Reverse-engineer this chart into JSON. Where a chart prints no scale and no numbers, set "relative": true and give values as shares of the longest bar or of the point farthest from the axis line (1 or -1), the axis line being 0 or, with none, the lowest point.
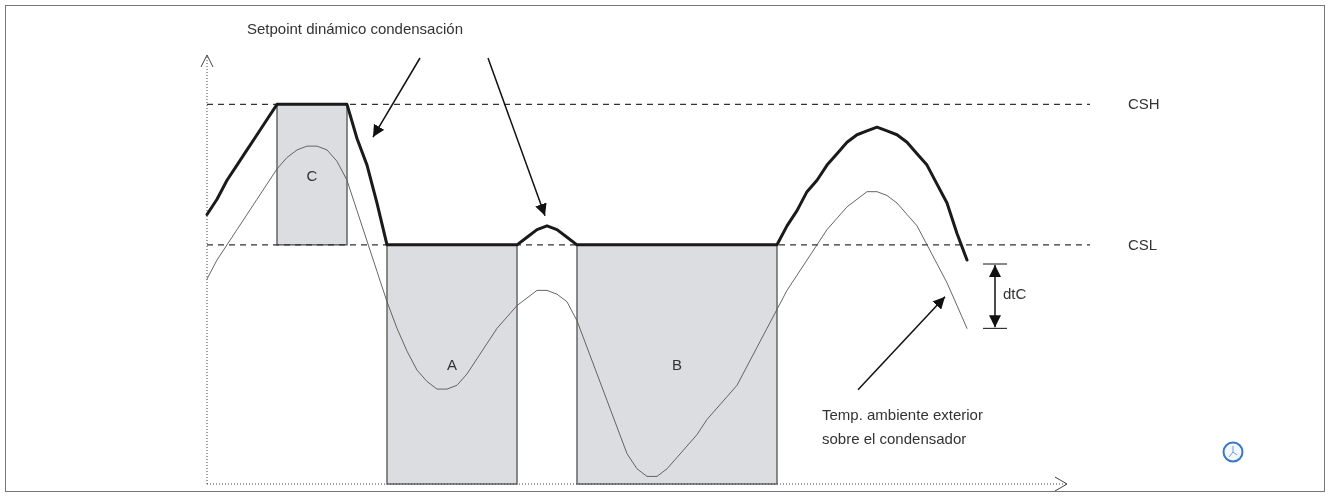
{
  "chart_data": {
    "type": "line",
    "relative": true,
    "categories": [
      null,
      null,
      null,
      null,
      null,
      null,
      null,
      null,
      null,
      null,
      null,
      null,
      null,
      null,
      null,
      null,
      null,
      null,
      null,
      null,
      null,
      null,
      null,
      null,
      null,
      null,
      null,
      null,
      null,
      null,
      null,
      null,
      null,
      null,
      null,
      null,
      null,
      null,
      null,
      null,
      null,
      null,
      null,
      null,
      null,
      null,
      null,
      null,
      null,
      null,
      null,
      null,
      null,
      null,
      null,
      null,
      null,
      null,
      null,
      null,
      null,
      null,
      null,
      null,
      null,
      null,
      null,
      null,
      null,
      null,
      null,
      null,
      null,
      null,
      null,
      null,
      null
    ],
    "series": [
      {
        "color": "#1a1a1a",
        "values": [
          0.71,
          0.75,
          0.8,
          0.84,
          0.88,
          0.92,
          0.96,
          1,
          1,
          1,
          1,
          1,
          1,
          1,
          1,
          0.91,
          0.84,
          0.74,
          0.63,
          0.63,
          0.63,
          0.63,
          0.63,
          0.63,
          0.63,
          0.63,
          0.63,
          0.63,
          0.63,
          0.63,
          0.63,
          0.63,
          0.65,
          0.67,
          0.68,
          0.67,
          0.65,
          0.63,
          0.63,
          0.63,
          0.63,
          0.63,
          0.63,
          0.63,
          0.63,
          0.63,
          0.63,
          0.63,
          0.63,
          0.63,
          0.63,
          0.63,
          0.63,
          0.63,
          0.63,
          0.63,
          0.63,
          0.63,
          0.68,
          0.72,
          0.77,
          0.8,
          0.84,
          0.87,
          0.9,
          0.92,
          0.93,
          0.94,
          0.93,
          0.92,
          0.9,
          0.87,
          0.84,
          0.79,
          0.74,
          0.66,
          0.59
        ]
      },
      {
        "color": "#555555",
        "values": [
          0.54,
          0.59,
          0.63,
          0.67,
          0.71,
          0.75,
          0.79,
          0.83,
          0.86,
          0.88,
          0.89,
          0.89,
          0.88,
          0.85,
          0.8,
          0.72,
          0.64,
          0.56,
          0.48,
          0.41,
          0.35,
          0.3,
          0.27,
          0.25,
          0.25,
          0.26,
          0.29,
          0.33,
          0.37,
          0.41,
          0.44,
          0.47,
          0.49,
          0.51,
          0.51,
          0.5,
          0.48,
          0.43,
          0.36,
          0.29,
          0.22,
          0.15,
          0.08,
          0.04,
          0.02,
          0.02,
          0.04,
          0.07,
          0.1,
          0.13,
          0.17,
          0.2,
          0.23,
          0.26,
          0.31,
          0.36,
          0.41,
          0.46,
          0.51,
          0.55,
          0.59,
          0.63,
          0.67,
          0.7,
          0.73,
          0.75,
          0.77,
          0.77,
          0.76,
          0.74,
          0.71,
          0.68,
          0.63,
          0.58,
          0.53,
          0.47,
          0.41
        ]
      }
    ],
    "ref_lines": [
      {
        "axis": "y",
        "value": 1,
        "label": "CSH",
        "color": "#333333",
        "line_style": "dashed"
      },
      {
        "axis": "y",
        "value": 0.63,
        "label": "CSL",
        "color": "#333333",
        "line_style": "dashed"
      }
    ],
    "annotations": [
      "Setpoint dinámico condensación",
      "Temp. ambiente exterior sobre el condensador",
      "dtC",
      "C",
      "A",
      "B"
    ]
  }
}
